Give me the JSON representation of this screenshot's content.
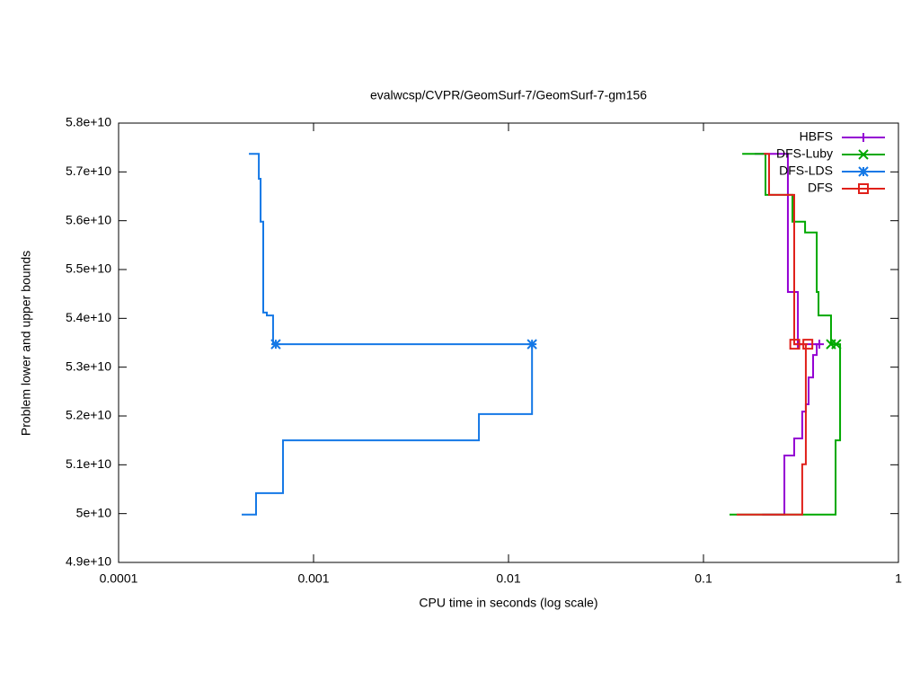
{
  "chart_data": {
    "type": "line",
    "title": "evalwcsp/CVPR/GeomSurf-7/GeomSurf-7-gm156",
    "xlabel": "CPU time in seconds (log scale)",
    "ylabel": "Problem lower and upper bounds",
    "xscale": "log",
    "xlim": [
      0.0001,
      1
    ],
    "xticks": [
      0.0001,
      0.001,
      0.01,
      0.1,
      1
    ],
    "ylim": [
      49000000000,
      58000000000
    ],
    "yticks": [
      {
        "value": 49000000000,
        "label": "4.9e+10"
      },
      {
        "value": 50000000000,
        "label": "5e+10"
      },
      {
        "value": 51000000000,
        "label": "5.1e+10"
      },
      {
        "value": 52000000000,
        "label": "5.2e+10"
      },
      {
        "value": 53000000000,
        "label": "5.3e+10"
      },
      {
        "value": 54000000000,
        "label": "5.4e+10"
      },
      {
        "value": 55000000000,
        "label": "5.5e+10"
      },
      {
        "value": 56000000000,
        "label": "5.6e+10"
      },
      {
        "value": 57000000000,
        "label": "5.7e+10"
      },
      {
        "value": 58000000000,
        "label": "5.8e+10"
      }
    ],
    "legend": "top-right",
    "series": [
      {
        "name": "HBFS",
        "color": "#9400d3",
        "marker": "plus",
        "x": [
          0.183,
          0.271,
          0.271,
          0.305,
          0.305,
          0.393,
          0.381,
          0.381,
          0.365,
          0.365,
          0.346,
          0.346,
          0.335,
          0.335,
          0.321,
          0.321,
          0.292,
          0.292,
          0.26,
          0.26,
          0.2
        ],
        "values": [
          57370000000,
          57370000000,
          54540000000,
          54540000000,
          53470000000,
          53470000000,
          53470000000,
          53250000000,
          53250000000,
          52790000000,
          52790000000,
          52240000000,
          52240000000,
          52090000000,
          52090000000,
          51540000000,
          51540000000,
          51190000000,
          51190000000,
          49980000000,
          49980000000
        ],
        "points": {
          "x": [
            0.305,
            0.393
          ],
          "values": [
            53470000000,
            53470000000
          ]
        }
      },
      {
        "name": "DFS-Luby",
        "color": "#00a800",
        "marker": "cross",
        "x": [
          0.158,
          0.208,
          0.208,
          0.286,
          0.286,
          0.332,
          0.332,
          0.381,
          0.381,
          0.389,
          0.389,
          0.451,
          0.451,
          0.502,
          0.502,
          0.476,
          0.476,
          0.136
        ],
        "values": [
          57370000000,
          57370000000,
          56530000000,
          56530000000,
          55980000000,
          55980000000,
          55760000000,
          55760000000,
          54540000000,
          54540000000,
          54060000000,
          54060000000,
          53470000000,
          53470000000,
          51500000000,
          51500000000,
          49980000000,
          49980000000
        ],
        "points": {
          "x": [
            0.451,
            0.48
          ],
          "values": [
            53470000000,
            53470000000
          ]
        }
      },
      {
        "name": "DFS-LDS",
        "color": "#1478e6",
        "marker": "star",
        "x": [
          0.000466,
          0.000524,
          0.000524,
          0.000535,
          0.000535,
          0.000552,
          0.000552,
          0.000576,
          0.000576,
          0.00062,
          0.00062,
          0.0132,
          0.0132,
          0.00705,
          0.00705,
          0.000697,
          0.000697,
          0.000507,
          0.000507,
          0.000428
        ],
        "values": [
          57370000000,
          57370000000,
          56860000000,
          56860000000,
          55980000000,
          55980000000,
          54120000000,
          54120000000,
          54060000000,
          54060000000,
          53470000000,
          53470000000,
          52040000000,
          52040000000,
          51500000000,
          51500000000,
          50420000000,
          50420000000,
          49980000000,
          49980000000
        ],
        "points": {
          "x": [
            0.00064,
            0.0132
          ],
          "values": [
            53470000000,
            53470000000
          ]
        }
      },
      {
        "name": "DFS",
        "color": "#e0201a",
        "marker": "square",
        "x": [
          0.204,
          0.217,
          0.217,
          0.292,
          0.292,
          0.343,
          0.335,
          0.335,
          0.321,
          0.321,
          0.148
        ],
        "values": [
          57370000000,
          57370000000,
          56530000000,
          56530000000,
          53470000000,
          53470000000,
          53470000000,
          51010000000,
          51010000000,
          49980000000,
          49980000000
        ],
        "points": {
          "x": [
            0.294,
            0.343
          ],
          "values": [
            53470000000,
            53470000000
          ]
        }
      }
    ]
  }
}
